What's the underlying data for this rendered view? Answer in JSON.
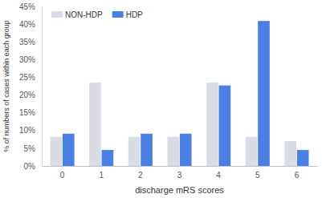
{
  "chart_data": {
    "type": "bar",
    "x_label": "discharge mRS scores",
    "y_label": "% of numbers of cases within each group",
    "categories": [
      "0",
      "1",
      "2",
      "3",
      "4",
      "5",
      "6"
    ],
    "series": [
      {
        "name": "NON-HDP",
        "color": "#d9dde3",
        "values": [
          8.2,
          23.5,
          8.2,
          8.2,
          23.5,
          8.2,
          7.0
        ]
      },
      {
        "name": "HDP",
        "color": "#4a80e6",
        "values": [
          9.1,
          4.5,
          9.1,
          9.1,
          22.7,
          40.9,
          4.5
        ]
      }
    ],
    "ylim": [
      0,
      45
    ],
    "yticks": [
      {
        "value": 0,
        "label": "0%"
      },
      {
        "value": 5,
        "label": "5%"
      },
      {
        "value": 10,
        "label": "10%"
      },
      {
        "value": 15,
        "label": "15%"
      },
      {
        "value": 20,
        "label": "20%"
      },
      {
        "value": 25,
        "label": "25%"
      },
      {
        "value": 30,
        "label": "30%"
      },
      {
        "value": 35,
        "label": "35%"
      },
      {
        "value": 40,
        "label": "40%"
      },
      {
        "value": 45,
        "label": "45%"
      }
    ],
    "grid": false,
    "legend": "upper left"
  }
}
